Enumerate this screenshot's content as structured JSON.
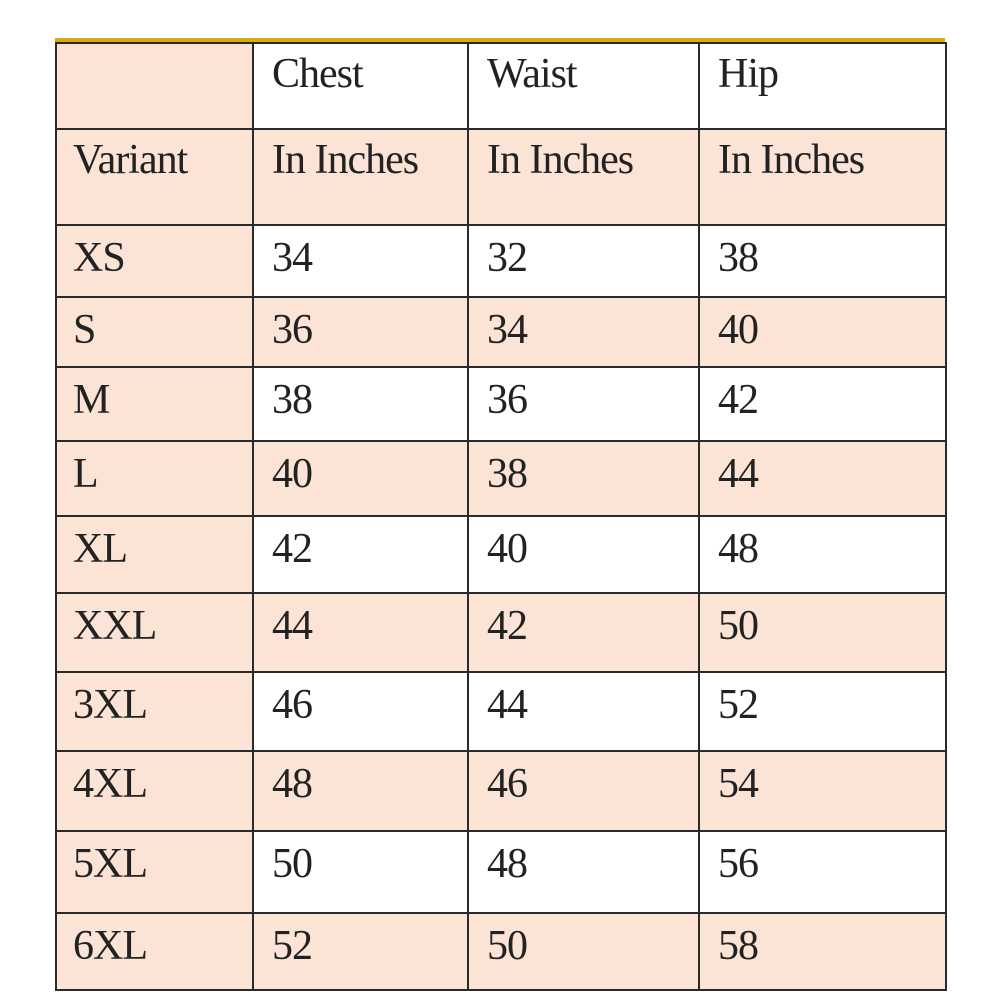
{
  "colors": {
    "peach": "#fbe4d5",
    "white": "#ffffff",
    "top_border": "#d9ab10"
  },
  "header": {
    "row1": [
      "",
      "Chest",
      "Waist",
      "Hip"
    ],
    "row2": [
      "Variant",
      "In Inches",
      "In Inches",
      "In Inches"
    ]
  },
  "rows": [
    {
      "variant": "XS",
      "chest": "34",
      "waist": "32",
      "hip": "38"
    },
    {
      "variant": "S",
      "chest": "36",
      "waist": "34",
      "hip": "40"
    },
    {
      "variant": "M",
      "chest": "38",
      "waist": "36",
      "hip": "42"
    },
    {
      "variant": "L",
      "chest": "40",
      "waist": "38",
      "hip": "44"
    },
    {
      "variant": "XL",
      "chest": "42",
      "waist": "40",
      "hip": "48"
    },
    {
      "variant": "XXL",
      "chest": "44",
      "waist": "42",
      "hip": "50"
    },
    {
      "variant": "3XL",
      "chest": "46",
      "waist": "44",
      "hip": "52"
    },
    {
      "variant": "4XL",
      "chest": "48",
      "waist": "46",
      "hip": "54"
    },
    {
      "variant": "5XL",
      "chest": "50",
      "waist": "48",
      "hip": "56"
    },
    {
      "variant": "6XL",
      "chest": "52",
      "waist": "50",
      "hip": "58"
    }
  ]
}
